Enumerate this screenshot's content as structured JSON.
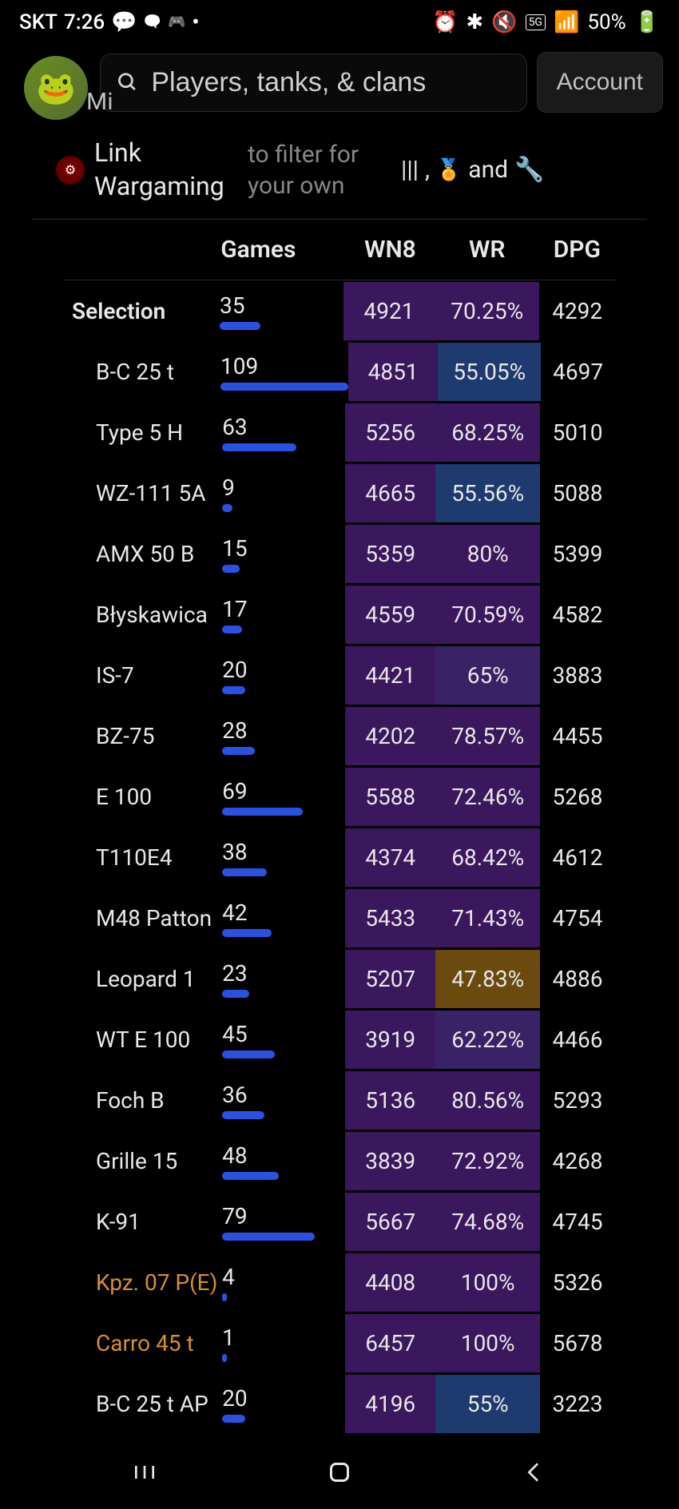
{
  "status_bar": {
    "carrier": "SKT",
    "time": "7:26",
    "battery": "50%"
  },
  "header": {
    "search_placeholder": "Players, tanks, & clans",
    "account_label": "Account",
    "mi_label": "Mi"
  },
  "link_wargaming": {
    "main": "Link Wargaming",
    "sub": "to filter for your own",
    "and_label": "and"
  },
  "table": {
    "headers": {
      "games": "Games",
      "wn8": "WN8",
      "wr": "WR",
      "dpg": "DPG"
    },
    "max_games": 109,
    "colors": {
      "wn8_purple": "#3b175e",
      "wn8_dark_purple": "#2d1048",
      "wr_purple": "#3b175e",
      "wr_blue": "#1e3a6e",
      "wr_dark_blue": "#182850",
      "wr_brown": "#6b4a0f",
      "wr_violet": "#3a2266"
    },
    "rows": [
      {
        "name": "Selection",
        "games": 35,
        "wn8": 4921,
        "wr": "70.25%",
        "dpg": 4292,
        "name_class": "selection",
        "wn8_bg": "#3b175e",
        "wr_bg": "#3b175e"
      },
      {
        "name": "B-C 25 t",
        "games": 109,
        "wn8": 4851,
        "wr": "55.05%",
        "dpg": 4697,
        "wn8_bg": "#3b175e",
        "wr_bg": "#1e3a6e"
      },
      {
        "name": "Type 5 H",
        "games": 63,
        "wn8": 5256,
        "wr": "68.25%",
        "dpg": 5010,
        "wn8_bg": "#3b175e",
        "wr_bg": "#3b175e"
      },
      {
        "name": "WZ-111 5A",
        "games": 9,
        "wn8": 4665,
        "wr": "55.56%",
        "dpg": 5088,
        "wn8_bg": "#3b175e",
        "wr_bg": "#1e3a6e"
      },
      {
        "name": "AMX 50 B",
        "games": 15,
        "wn8": 5359,
        "wr": "80%",
        "dpg": 5399,
        "wn8_bg": "#3b175e",
        "wr_bg": "#3b175e"
      },
      {
        "name": "Błyskawica",
        "games": 17,
        "wn8": 4559,
        "wr": "70.59%",
        "dpg": 4582,
        "wn8_bg": "#3b175e",
        "wr_bg": "#3b175e"
      },
      {
        "name": "IS-7",
        "games": 20,
        "wn8": 4421,
        "wr": "65%",
        "dpg": 3883,
        "wn8_bg": "#3b175e",
        "wr_bg": "#3a2266"
      },
      {
        "name": "BZ-75",
        "games": 28,
        "wn8": 4202,
        "wr": "78.57%",
        "dpg": 4455,
        "wn8_bg": "#3b175e",
        "wr_bg": "#3b175e"
      },
      {
        "name": "E 100",
        "games": 69,
        "wn8": 5588,
        "wr": "72.46%",
        "dpg": 5268,
        "wn8_bg": "#3b175e",
        "wr_bg": "#3b175e"
      },
      {
        "name": "T110E4",
        "games": 38,
        "wn8": 4374,
        "wr": "68.42%",
        "dpg": 4612,
        "wn8_bg": "#3b175e",
        "wr_bg": "#3b175e"
      },
      {
        "name": "M48 Patton",
        "games": 42,
        "wn8": 5433,
        "wr": "71.43%",
        "dpg": 4754,
        "wn8_bg": "#3b175e",
        "wr_bg": "#3b175e"
      },
      {
        "name": "Leopard 1",
        "games": 23,
        "wn8": 5207,
        "wr": "47.83%",
        "dpg": 4886,
        "wn8_bg": "#3b175e",
        "wr_bg": "#6b4a0f"
      },
      {
        "name": "WT E 100",
        "games": 45,
        "wn8": 3919,
        "wr": "62.22%",
        "dpg": 4466,
        "wn8_bg": "#3b175e",
        "wr_bg": "#3a2266"
      },
      {
        "name": "Foch B",
        "games": 36,
        "wn8": 5136,
        "wr": "80.56%",
        "dpg": 5293,
        "wn8_bg": "#3b175e",
        "wr_bg": "#3b175e"
      },
      {
        "name": "Grille 15",
        "games": 48,
        "wn8": 3839,
        "wr": "72.92%",
        "dpg": 4268,
        "wn8_bg": "#3b175e",
        "wr_bg": "#3b175e"
      },
      {
        "name": "K-91",
        "games": 79,
        "wn8": 5667,
        "wr": "74.68%",
        "dpg": 4745,
        "wn8_bg": "#3b175e",
        "wr_bg": "#3b175e"
      },
      {
        "name": "Kpz. 07 P(E)",
        "games": 4,
        "wn8": 4408,
        "wr": "100%",
        "dpg": 5326,
        "name_class": "orange",
        "wn8_bg": "#3b175e",
        "wr_bg": "#3b175e"
      },
      {
        "name": "Carro 45 t",
        "games": 1,
        "wn8": 6457,
        "wr": "100%",
        "dpg": 5678,
        "name_class": "orange",
        "wn8_bg": "#3b175e",
        "wr_bg": "#3b175e"
      },
      {
        "name": "B-C 25 t AP",
        "games": 20,
        "wn8": 4196,
        "wr": "55%",
        "dpg": 3223,
        "wn8_bg": "#3b175e",
        "wr_bg": "#1e3a6e"
      }
    ]
  }
}
